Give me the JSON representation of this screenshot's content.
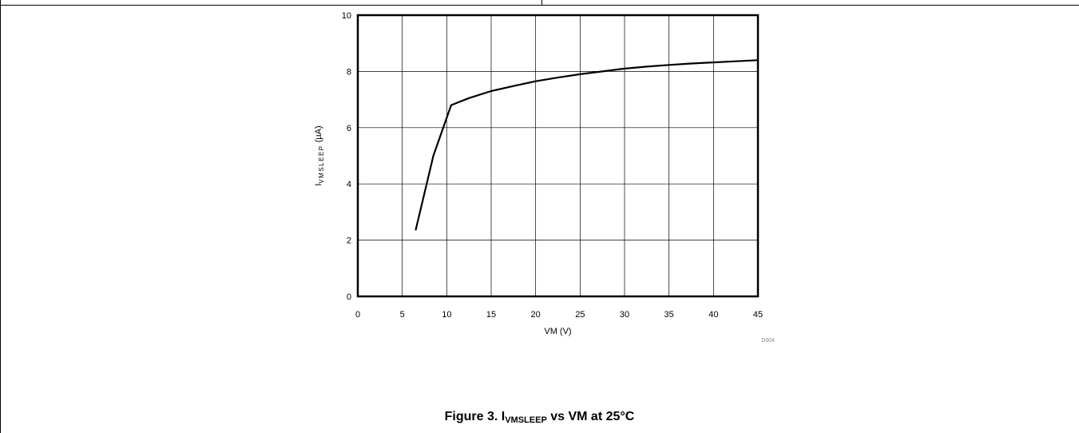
{
  "chart_data": {
    "type": "line",
    "title": "",
    "xlabel": "VM (V)",
    "ylabel": {
      "main": "I",
      "sub": "VMSLEEP",
      "unit": " (µA)"
    },
    "xlim": [
      0,
      45
    ],
    "ylim": [
      0,
      10
    ],
    "xticks": [
      "0",
      "5",
      "10",
      "15",
      "20",
      "25",
      "30",
      "35",
      "40",
      "45"
    ],
    "yticks": [
      "0",
      "2",
      "4",
      "6",
      "8",
      "10"
    ],
    "grid": true,
    "figure_code": "D004",
    "series": [
      {
        "x": [
          6.5,
          8.5,
          10.5,
          12.5,
          15,
          17.5,
          20,
          22.5,
          25,
          27.5,
          30,
          32.5,
          35,
          37.5,
          40,
          42.5,
          45
        ],
        "y": [
          2.35,
          5.0,
          6.8,
          7.05,
          7.3,
          7.48,
          7.65,
          7.78,
          7.9,
          8.0,
          8.1,
          8.17,
          8.23,
          8.28,
          8.32,
          8.36,
          8.4
        ]
      }
    ]
  },
  "caption": {
    "prefix": "Figure 3. I",
    "sub": "VMSLEEP",
    "suffix": " vs VM at 25°C"
  }
}
